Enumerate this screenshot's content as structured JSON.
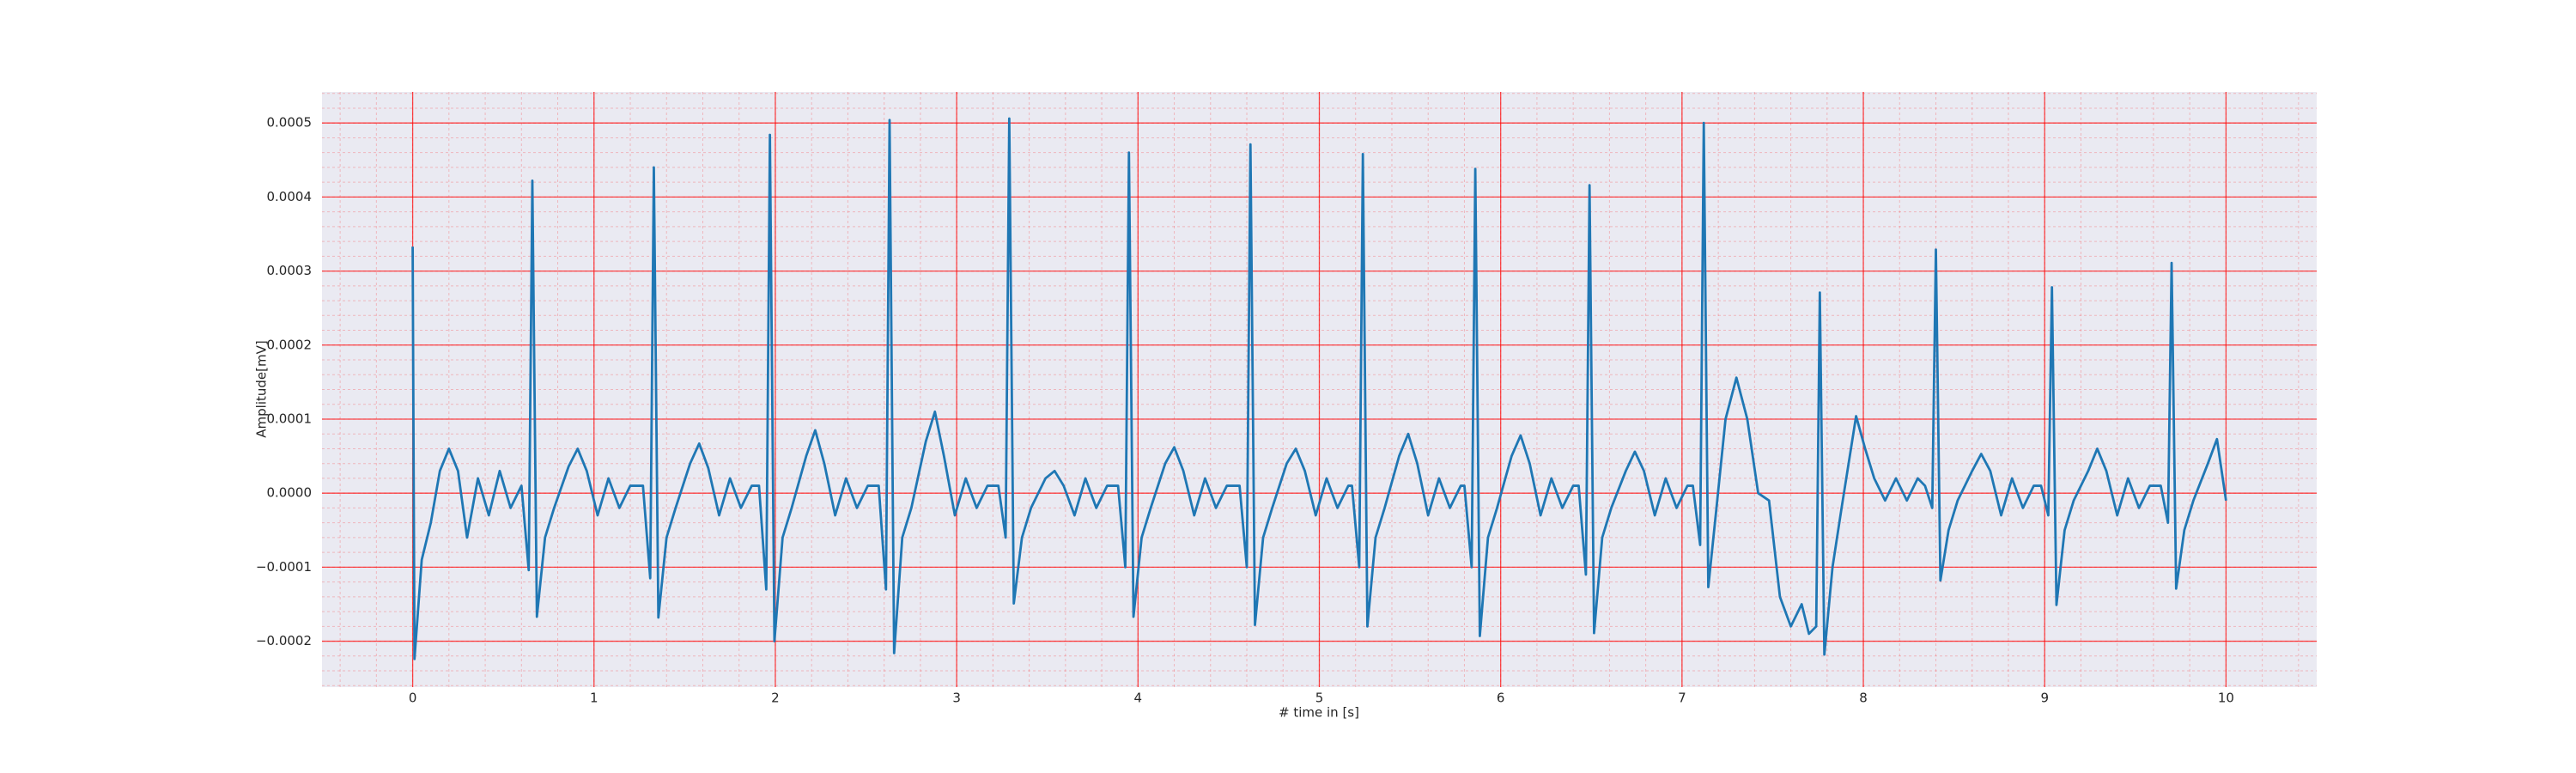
{
  "chart_data": {
    "type": "line",
    "xlabel": "# time in [s]",
    "ylabel": "Amplitude[mV]",
    "xlim": [
      -0.5,
      10.5
    ],
    "ylim": [
      -0.000262,
      0.000542
    ],
    "xticks": [
      0,
      1,
      2,
      3,
      4,
      5,
      6,
      7,
      8,
      9,
      10
    ],
    "yticks": [
      {
        "value": -0.0002,
        "label": "−0.0002"
      },
      {
        "value": -0.0001,
        "label": "−0.0001"
      },
      {
        "value": 0,
        "label": "0.0000"
      },
      0.0001,
      0.0002,
      0.0003,
      0.0004,
      0.0005
    ],
    "grid": true,
    "minor_grid": true,
    "background": "#eaeaf2",
    "grid_color": "#ff0000",
    "x": [
      0,
      0.01,
      0.05,
      0.1,
      0.15,
      0.2,
      0.25,
      0.3,
      0.36,
      0.42,
      0.48,
      0.54,
      0.6,
      0.64,
      0.66,
      0.685,
      0.73,
      0.78,
      0.86,
      0.91,
      0.96,
      1.02,
      1.08,
      1.14,
      1.2,
      1.27,
      1.31,
      1.33,
      1.355,
      1.4,
      1.45,
      1.53,
      1.58,
      1.63,
      1.69,
      1.75,
      1.81,
      1.87,
      1.91,
      1.95,
      1.97,
      1.995,
      2.04,
      2.09,
      2.17,
      2.22,
      2.27,
      2.33,
      2.39,
      2.45,
      2.51,
      2.57,
      2.61,
      2.63,
      2.655,
      2.7,
      2.75,
      2.83,
      2.88,
      2.93,
      2.99,
      3.05,
      3.11,
      3.17,
      3.23,
      3.27,
      3.29,
      3.315,
      3.36,
      3.41,
      3.49,
      3.54,
      3.59,
      3.65,
      3.71,
      3.77,
      3.83,
      3.89,
      3.93,
      3.95,
      3.975,
      4.02,
      4.07,
      4.15,
      4.2,
      4.25,
      4.31,
      4.37,
      4.43,
      4.49,
      4.56,
      4.6,
      4.62,
      4.645,
      4.69,
      4.74,
      4.82,
      4.87,
      4.92,
      4.98,
      5.04,
      5.1,
      5.16,
      5.18,
      5.22,
      5.24,
      5.265,
      5.31,
      5.36,
      5.44,
      5.49,
      5.54,
      5.6,
      5.66,
      5.72,
      5.78,
      5.8,
      5.84,
      5.86,
      5.885,
      5.93,
      5.98,
      6.06,
      6.11,
      6.16,
      6.22,
      6.28,
      6.34,
      6.4,
      6.43,
      6.47,
      6.49,
      6.515,
      6.56,
      6.61,
      6.69,
      6.74,
      6.79,
      6.85,
      6.91,
      6.97,
      7.03,
      7.06,
      7.1,
      7.12,
      7.145,
      7.19,
      7.24,
      7.3,
      7.36,
      7.42,
      7.48,
      7.54,
      7.6,
      7.66,
      7.7,
      7.74,
      7.76,
      7.785,
      7.83,
      7.88,
      7.96,
      8.01,
      8.06,
      8.12,
      8.18,
      8.24,
      8.3,
      8.34,
      8.38,
      8.4,
      8.425,
      8.47,
      8.52,
      8.6,
      8.65,
      8.7,
      8.76,
      8.82,
      8.88,
      8.94,
      8.98,
      9.02,
      9.04,
      9.065,
      9.11,
      9.16,
      9.24,
      9.29,
      9.34,
      9.4,
      9.46,
      9.52,
      9.58,
      9.64,
      9.68,
      9.7,
      9.725,
      9.77,
      9.82,
      9.9,
      9.95,
      10
    ],
    "series": [
      {
        "color": "#1f77b4",
        "values": [
          0.000333,
          -0.000224,
          -9e-05,
          -4e-05,
          3e-05,
          6e-05,
          3e-05,
          -6e-05,
          2e-05,
          -3e-05,
          3e-05,
          -2e-05,
          1e-05,
          -0.000104,
          0.000422,
          -0.000167,
          -6e-05,
          -2e-05,
          3.6e-05,
          6e-05,
          3e-05,
          -3e-05,
          2e-05,
          -2e-05,
          1e-05,
          1e-05,
          -0.000115,
          0.00044,
          -0.000168,
          -6e-05,
          -2e-05,
          4e-05,
          6.7e-05,
          3.4e-05,
          -3e-05,
          2e-05,
          -2e-05,
          1e-05,
          1e-05,
          -0.00013,
          0.000484,
          -0.0002,
          -6e-05,
          -2e-05,
          5e-05,
          8.5e-05,
          4e-05,
          -3e-05,
          2e-05,
          -2e-05,
          1e-05,
          1e-05,
          -0.00013,
          0.000504,
          -0.000216,
          -6e-05,
          -2e-05,
          7e-05,
          0.00011,
          5e-05,
          -3e-05,
          2e-05,
          -2e-05,
          1e-05,
          1e-05,
          -6e-05,
          0.000506,
          -0.000149,
          -6e-05,
          -2e-05,
          2e-05,
          3e-05,
          1e-05,
          -3e-05,
          2e-05,
          -2e-05,
          1e-05,
          1e-05,
          -0.0001,
          0.00046,
          -0.000167,
          -6e-05,
          -2e-05,
          4e-05,
          6.2e-05,
          3e-05,
          -3e-05,
          2e-05,
          -2e-05,
          1e-05,
          1e-05,
          -0.0001,
          0.000471,
          -0.000178,
          -6e-05,
          -2e-05,
          4e-05,
          6e-05,
          3e-05,
          -3e-05,
          2e-05,
          -2e-05,
          1e-05,
          1e-05,
          -0.0001,
          0.000458,
          -0.00018,
          -6e-05,
          -2e-05,
          5e-05,
          8e-05,
          4e-05,
          -3e-05,
          2e-05,
          -2e-05,
          1e-05,
          1e-05,
          -0.0001,
          0.000438,
          -0.000193,
          -6e-05,
          -2e-05,
          5e-05,
          7.8e-05,
          4e-05,
          -3e-05,
          2e-05,
          -2e-05,
          1e-05,
          1e-05,
          -0.00011,
          0.000416,
          -0.000189,
          -6e-05,
          -2e-05,
          3e-05,
          5.6e-05,
          3e-05,
          -3e-05,
          2e-05,
          -2e-05,
          1e-05,
          1e-05,
          -7e-05,
          0.0005,
          -0.000127,
          -2e-05,
          0.0001,
          0.000156,
          0.0001,
          0,
          -1e-05,
          -0.00014,
          -0.00018,
          -0.00015,
          -0.00019,
          -0.00018,
          0.000271,
          -0.000218,
          -0.0001,
          -2e-05,
          0.000104,
          6e-05,
          2e-05,
          -1e-05,
          2e-05,
          -1e-05,
          2e-05,
          1e-05,
          -2e-05,
          0.000329,
          -0.000118,
          -5e-05,
          -1e-05,
          3e-05,
          5.3e-05,
          3e-05,
          -3e-05,
          2e-05,
          -2e-05,
          1e-05,
          1e-05,
          -3e-05,
          0.000278,
          -0.000151,
          -5e-05,
          -1e-05,
          3e-05,
          6e-05,
          3e-05,
          -3e-05,
          2e-05,
          -2e-05,
          1e-05,
          1e-05,
          -4e-05,
          0.000311,
          -0.000129,
          -5e-05,
          -1e-05,
          4e-05,
          7.3e-05,
          -1e-05
        ]
      }
    ]
  }
}
